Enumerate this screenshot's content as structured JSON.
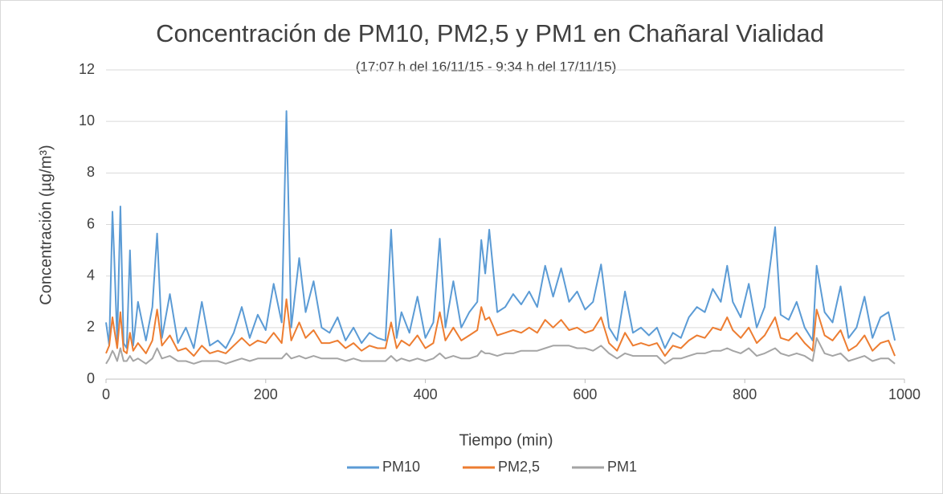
{
  "chart_data": {
    "type": "line",
    "title": "Concentración de PM10, PM2,5 y PM1 en Chañaral Vialidad",
    "subtitle": "(17:07 h del 16/11/15 - 9:34 h del 17/11/15)",
    "x_label": "Tiempo (min)",
    "y_label": "Concentración (µg/m³)",
    "x": [
      0,
      4,
      8,
      10,
      14,
      18,
      22,
      26,
      30,
      34,
      40,
      50,
      58,
      64,
      70,
      80,
      90,
      100,
      110,
      120,
      130,
      140,
      150,
      160,
      170,
      180,
      190,
      200,
      210,
      220,
      226,
      232,
      242,
      250,
      260,
      270,
      280,
      290,
      300,
      310,
      320,
      330,
      340,
      350,
      357,
      364,
      370,
      380,
      390,
      400,
      410,
      418,
      425,
      435,
      445,
      455,
      465,
      470,
      475,
      480,
      490,
      500,
      510,
      520,
      530,
      540,
      550,
      560,
      570,
      580,
      590,
      600,
      610,
      620,
      630,
      640,
      650,
      660,
      670,
      680,
      690,
      700,
      710,
      720,
      730,
      740,
      750,
      760,
      770,
      778,
      785,
      795,
      805,
      815,
      825,
      838,
      845,
      855,
      865,
      875,
      885,
      890,
      900,
      910,
      920,
      930,
      940,
      950,
      960,
      970,
      980,
      988
    ],
    "series": [
      {
        "name": "PM10",
        "color": "#5b9bd5",
        "values": [
          2.2,
          1.3,
          6.5,
          5.0,
          1.5,
          6.7,
          1.4,
          1.2,
          5.0,
          1.3,
          3.0,
          1.5,
          2.8,
          5.65,
          1.6,
          3.3,
          1.4,
          2.0,
          1.2,
          3.0,
          1.3,
          1.5,
          1.2,
          1.8,
          2.8,
          1.6,
          2.5,
          1.9,
          3.7,
          2.2,
          10.4,
          2.0,
          4.7,
          2.6,
          3.8,
          2.0,
          1.8,
          2.4,
          1.5,
          2.0,
          1.4,
          1.8,
          1.6,
          1.5,
          5.8,
          1.6,
          2.6,
          1.8,
          3.2,
          1.6,
          2.2,
          5.45,
          2.0,
          3.8,
          2.0,
          2.6,
          3.0,
          5.4,
          4.1,
          5.8,
          2.6,
          2.8,
          3.3,
          2.9,
          3.4,
          2.8,
          4.4,
          3.2,
          4.3,
          3.0,
          3.4,
          2.7,
          3.0,
          4.45,
          2.0,
          1.5,
          3.4,
          1.8,
          2.0,
          1.7,
          2.0,
          1.2,
          1.8,
          1.6,
          2.4,
          2.8,
          2.6,
          3.5,
          3.0,
          4.4,
          3.0,
          2.4,
          3.7,
          2.0,
          2.8,
          5.9,
          2.5,
          2.3,
          3.0,
          2.0,
          1.5,
          4.4,
          2.6,
          2.2,
          3.6,
          1.6,
          2.0,
          3.2,
          1.6,
          2.4,
          2.6,
          1.5
        ]
      },
      {
        "name": "PM2,5",
        "color": "#ed7d31",
        "values": [
          1.0,
          1.3,
          2.4,
          2.0,
          1.2,
          2.6,
          1.1,
          1.0,
          1.8,
          1.1,
          1.4,
          1.0,
          1.5,
          2.7,
          1.3,
          1.7,
          1.1,
          1.2,
          0.9,
          1.3,
          1.0,
          1.1,
          1.0,
          1.3,
          1.6,
          1.3,
          1.5,
          1.4,
          1.8,
          1.4,
          3.1,
          1.5,
          2.2,
          1.6,
          1.9,
          1.4,
          1.4,
          1.5,
          1.2,
          1.4,
          1.1,
          1.3,
          1.2,
          1.2,
          2.2,
          1.2,
          1.5,
          1.3,
          1.7,
          1.2,
          1.4,
          2.6,
          1.5,
          2.0,
          1.5,
          1.7,
          1.9,
          2.8,
          2.3,
          2.4,
          1.7,
          1.8,
          1.9,
          1.8,
          2.0,
          1.8,
          2.3,
          2.0,
          2.3,
          1.9,
          2.0,
          1.8,
          1.9,
          2.4,
          1.4,
          1.1,
          1.8,
          1.3,
          1.4,
          1.3,
          1.4,
          0.9,
          1.3,
          1.2,
          1.5,
          1.7,
          1.6,
          2.0,
          1.9,
          2.4,
          1.9,
          1.6,
          2.0,
          1.4,
          1.7,
          2.4,
          1.6,
          1.5,
          1.8,
          1.4,
          1.1,
          2.7,
          1.7,
          1.5,
          1.9,
          1.1,
          1.3,
          1.7,
          1.1,
          1.4,
          1.5,
          0.9
        ]
      },
      {
        "name": "PM1",
        "color": "#a5a5a5",
        "values": [
          0.6,
          0.8,
          1.1,
          1.0,
          0.7,
          1.2,
          0.7,
          0.7,
          0.9,
          0.7,
          0.8,
          0.6,
          0.8,
          1.2,
          0.8,
          0.9,
          0.7,
          0.7,
          0.6,
          0.7,
          0.7,
          0.7,
          0.6,
          0.7,
          0.8,
          0.7,
          0.8,
          0.8,
          0.8,
          0.8,
          1.0,
          0.8,
          0.9,
          0.8,
          0.9,
          0.8,
          0.8,
          0.8,
          0.7,
          0.8,
          0.7,
          0.7,
          0.7,
          0.7,
          0.9,
          0.7,
          0.8,
          0.7,
          0.8,
          0.7,
          0.8,
          1.0,
          0.8,
          0.9,
          0.8,
          0.8,
          0.9,
          1.1,
          1.0,
          1.0,
          0.9,
          1.0,
          1.0,
          1.1,
          1.1,
          1.1,
          1.2,
          1.3,
          1.3,
          1.3,
          1.2,
          1.2,
          1.1,
          1.3,
          1.0,
          0.8,
          1.0,
          0.9,
          0.9,
          0.9,
          0.9,
          0.6,
          0.8,
          0.8,
          0.9,
          1.0,
          1.0,
          1.1,
          1.1,
          1.2,
          1.1,
          1.0,
          1.2,
          0.9,
          1.0,
          1.2,
          1.0,
          0.9,
          1.0,
          0.9,
          0.7,
          1.6,
          1.0,
          0.9,
          1.0,
          0.7,
          0.8,
          0.9,
          0.7,
          0.8,
          0.8,
          0.6
        ]
      }
    ],
    "xlim": [
      0,
      1000
    ],
    "xticks": [
      0,
      200,
      400,
      600,
      800,
      1000
    ],
    "ylim": [
      0,
      12
    ],
    "yticks": [
      0,
      2,
      4,
      6,
      8,
      10,
      12
    ],
    "grid": true,
    "legend": "bottom"
  }
}
